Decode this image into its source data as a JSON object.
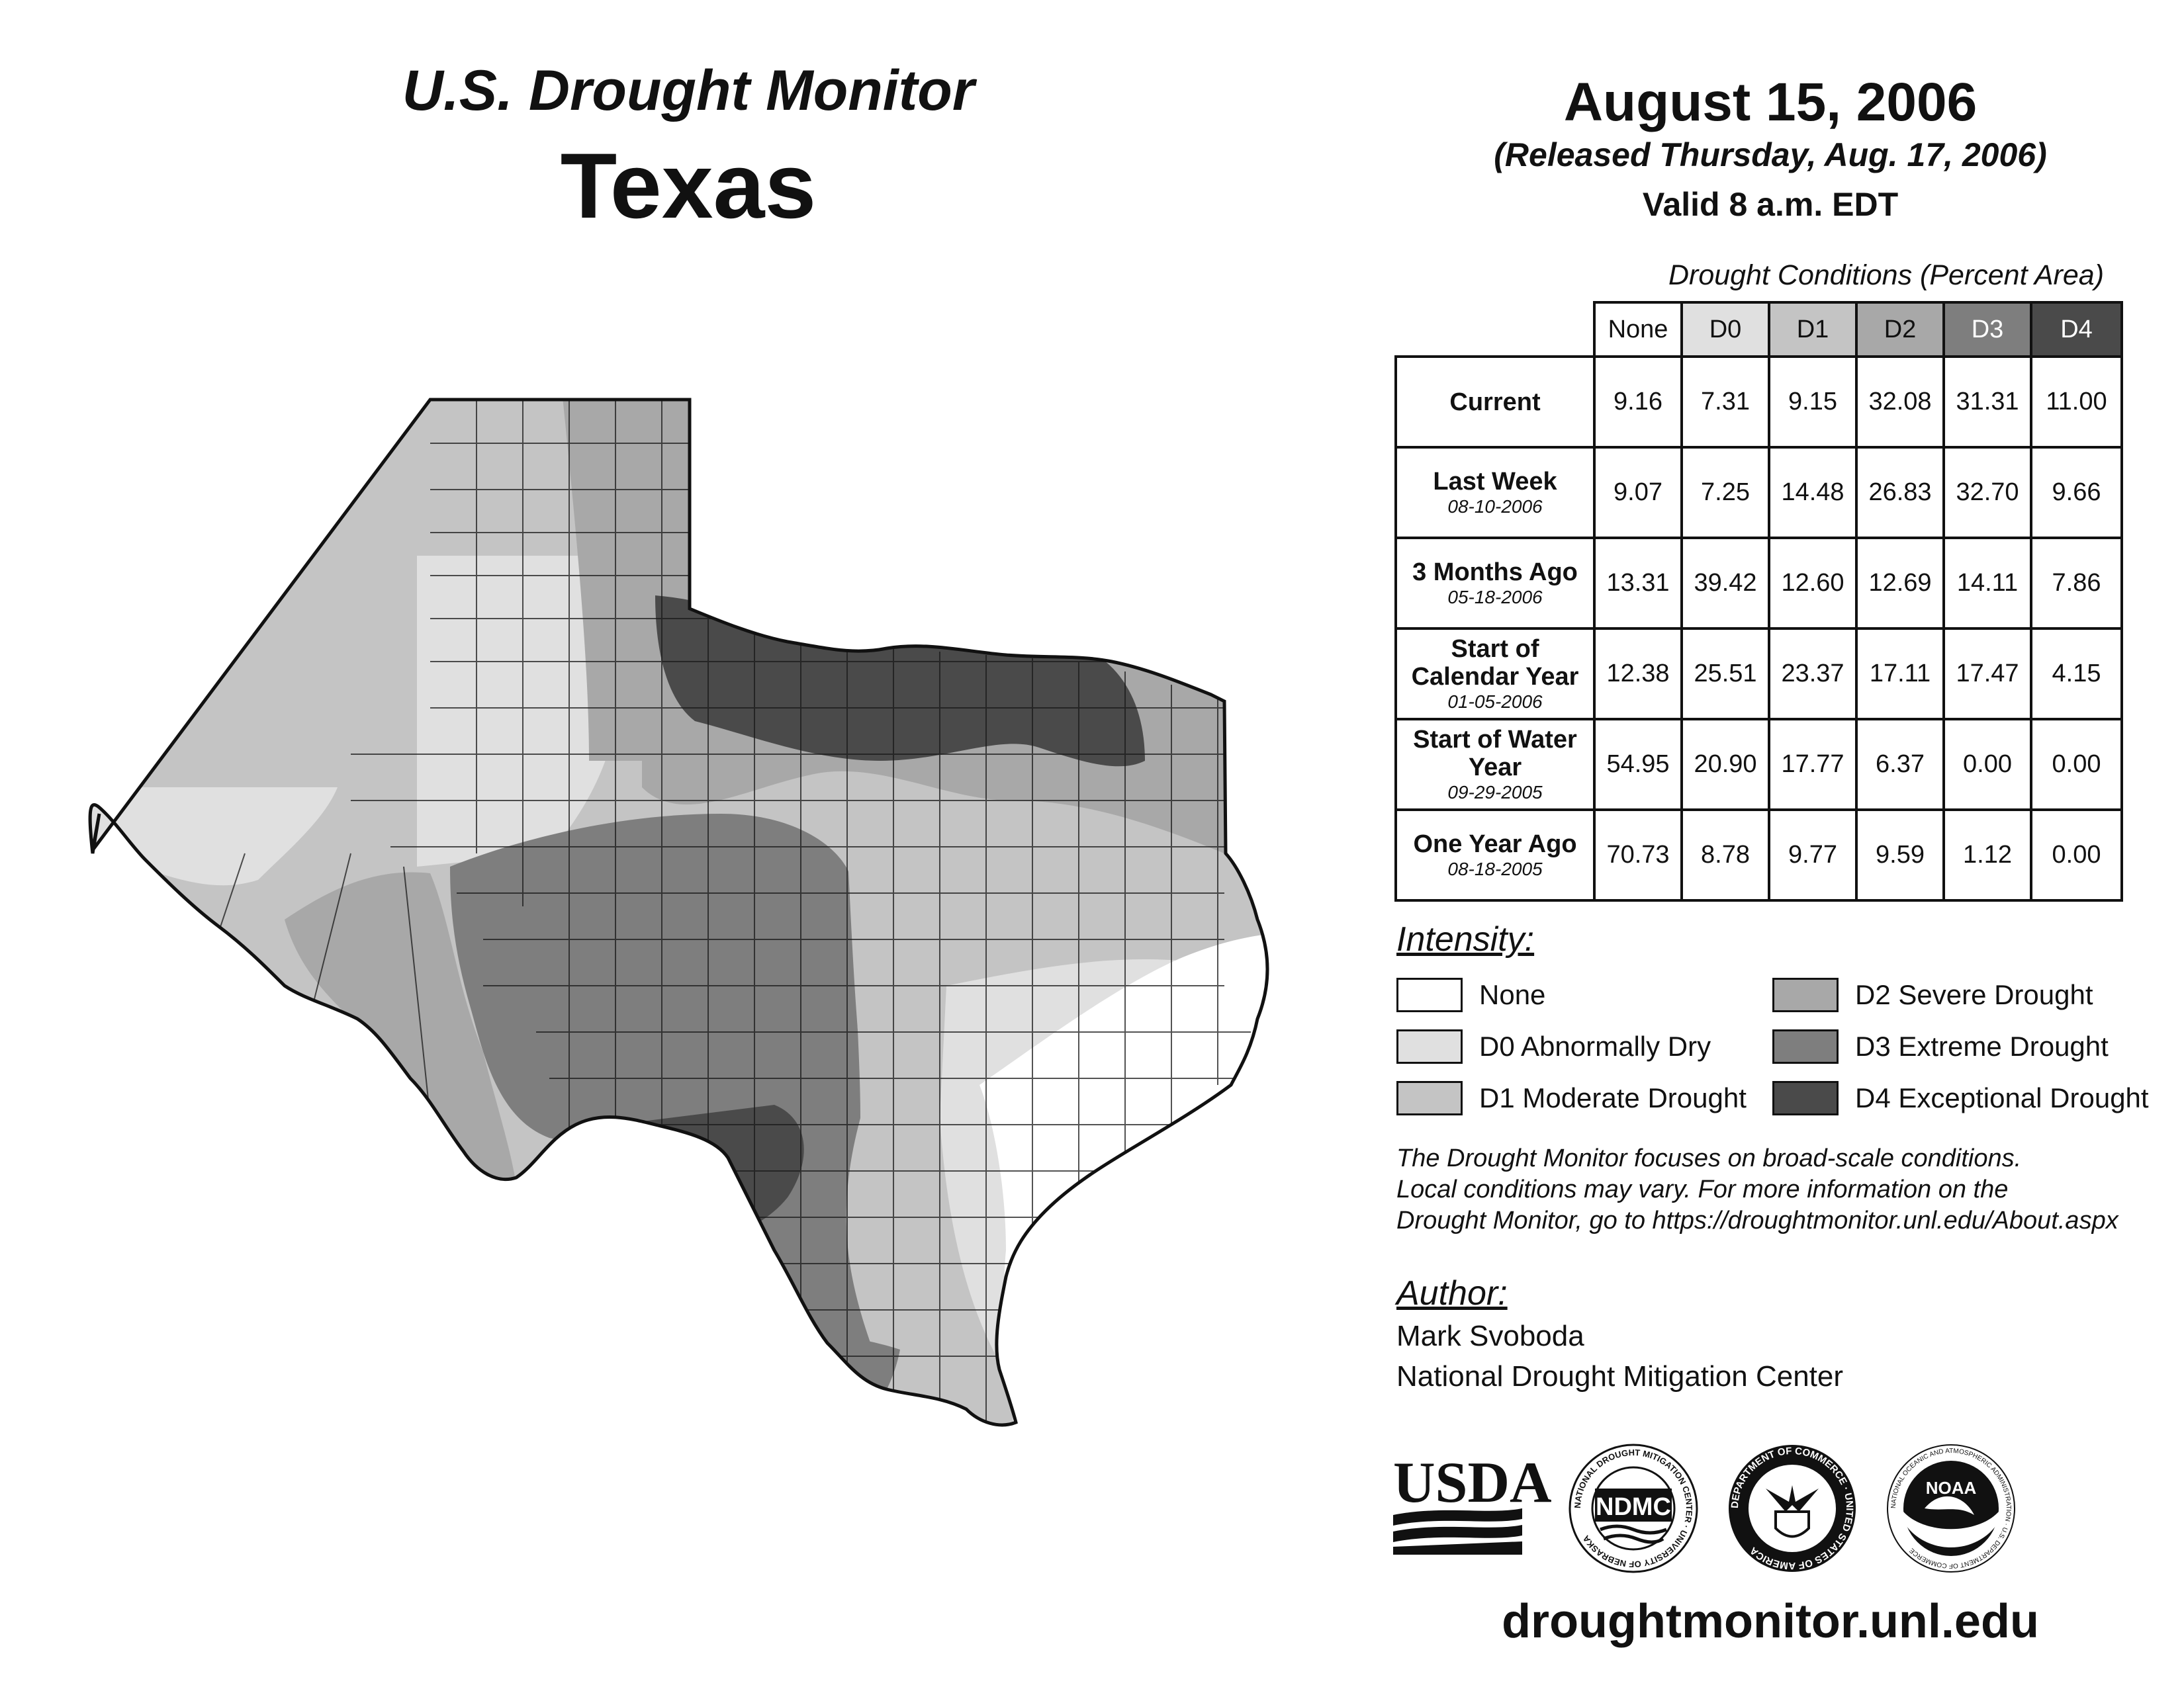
{
  "header": {
    "product": "U.S. Drought Monitor",
    "state": "Texas",
    "date": "August 15, 2006",
    "released": "(Released Thursday, Aug. 17, 2006)",
    "valid": "Valid 8 a.m. EDT"
  },
  "table": {
    "caption": "Drought Conditions (Percent Area)",
    "columns": [
      "None",
      "D0",
      "D1",
      "D2",
      "D3",
      "D4"
    ],
    "rows": [
      {
        "label": "Current",
        "date": "",
        "values": [
          "9.16",
          "7.31",
          "9.15",
          "32.08",
          "31.31",
          "11.00"
        ]
      },
      {
        "label": "Last Week",
        "date": "08-10-2006",
        "values": [
          "9.07",
          "7.25",
          "14.48",
          "26.83",
          "32.70",
          "9.66"
        ]
      },
      {
        "label": "3 Months Ago",
        "date": "05-18-2006",
        "values": [
          "13.31",
          "39.42",
          "12.60",
          "12.69",
          "14.11",
          "7.86"
        ]
      },
      {
        "label": "Start of Calendar Year",
        "date": "01-05-2006",
        "values": [
          "12.38",
          "25.51",
          "23.37",
          "17.11",
          "17.47",
          "4.15"
        ]
      },
      {
        "label": "Start of Water Year",
        "date": "09-29-2005",
        "values": [
          "54.95",
          "20.90",
          "17.77",
          "6.37",
          "0.00",
          "0.00"
        ]
      },
      {
        "label": "One Year Ago",
        "date": "08-18-2005",
        "values": [
          "70.73",
          "8.78",
          "9.77",
          "9.59",
          "1.12",
          "0.00"
        ]
      }
    ]
  },
  "legend": {
    "title": "Intensity:",
    "items": [
      {
        "label": "None",
        "color": "#ffffff"
      },
      {
        "label": "D0 Abnormally Dry",
        "color": "#e0e0e0"
      },
      {
        "label": "D1 Moderate Drought",
        "color": "#c4c4c4"
      },
      {
        "label": "D2 Severe Drought",
        "color": "#a8a8a8"
      },
      {
        "label": "D3 Extreme Drought",
        "color": "#7e7e7e"
      },
      {
        "label": "D4 Exceptional Drought",
        "color": "#4a4a4a"
      }
    ]
  },
  "note": {
    "line1": "The Drought Monitor focuses on broad-scale conditions.",
    "line2": "Local conditions may vary. For more information on the",
    "line3": "Drought Monitor, go to https://droughtmonitor.unl.edu/About.aspx"
  },
  "author": {
    "title": "Author:",
    "name": "Mark Svoboda",
    "org": "National Drought Mitigation Center"
  },
  "logos": {
    "usda": "USDA",
    "ndmc": "NDMC",
    "ndmc_ring": "NATIONAL DROUGHT MITIGATION CENTER · UNIVERSITY OF NEBRASKA",
    "doc_ring": "DEPARTMENT OF COMMERCE · UNITED STATES OF AMERICA",
    "noaa": "NOAA",
    "noaa_ring": "NATIONAL OCEANIC AND ATMOSPHERIC ADMINISTRATION · U.S. DEPARTMENT OF COMMERCE"
  },
  "website": "droughtmonitor.unl.edu",
  "colors": {
    "none": "#ffffff",
    "d0": "#e0e0e0",
    "d1": "#c4c4c4",
    "d2": "#a8a8a8",
    "d3": "#7e7e7e",
    "d4": "#4a4a4a",
    "border": "#111111"
  }
}
